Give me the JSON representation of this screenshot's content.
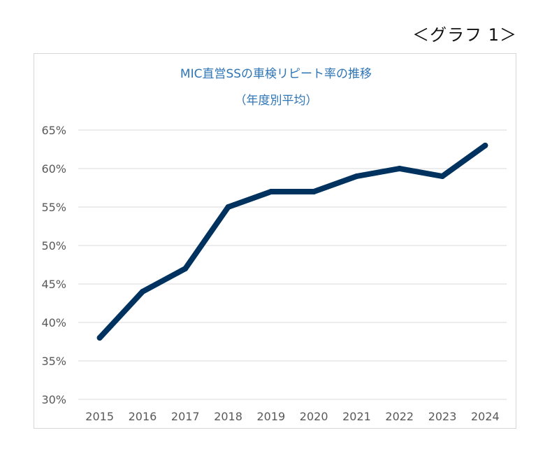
{
  "caption": "＜グラフ 1＞",
  "colors": {
    "title": "#2E75B6",
    "line": "#00325F",
    "grid": "#D9D9D9",
    "tick": "#595959",
    "frame": "#D6D6D6"
  },
  "chart_data": {
    "type": "line",
    "title": "MIC直営SSの車検リピート率の推移",
    "subtitle": "（年度別平均）",
    "xlabel": "",
    "ylabel": "",
    "categories": [
      "2015",
      "2016",
      "2017",
      "2018",
      "2019",
      "2020",
      "2021",
      "2022",
      "2023",
      "2024"
    ],
    "series": [
      {
        "values": [
          38,
          44,
          47,
          55,
          57,
          57,
          59,
          60,
          59,
          63
        ]
      }
    ],
    "ylim": [
      30,
      65
    ],
    "yticks": [
      "30%",
      "35%",
      "40%",
      "45%",
      "50%",
      "55%",
      "60%",
      "65%"
    ],
    "ytick_values": [
      30,
      35,
      40,
      45,
      50,
      55,
      60,
      65
    ],
    "grid": true,
    "legend": "none"
  }
}
